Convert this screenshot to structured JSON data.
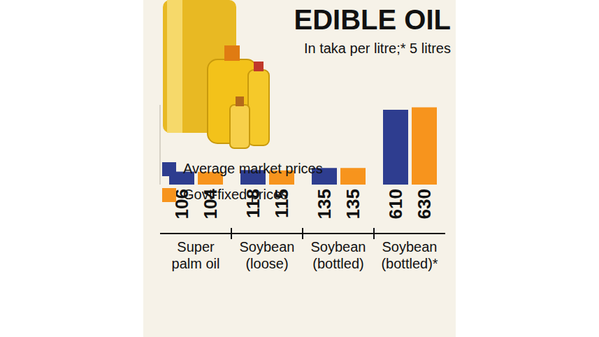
{
  "chart_data": {
    "type": "bar",
    "title": "EDIBLE OIL",
    "subtitle": "In taka per litre;* 5 litres",
    "categories": [
      "Super palm oil",
      "Soybean (loose)",
      "Soybean (bottled)",
      "Soybean (bottled)*"
    ],
    "series": [
      {
        "name": "Average market  prices",
        "color": "#2e3d8f",
        "values": [
          106,
          118,
          135,
          610
        ]
      },
      {
        "name": "Govt-fixed prices",
        "color": "#f7941d",
        "values": [
          104,
          115,
          135,
          630
        ]
      }
    ],
    "ylim": [
      0,
      650
    ],
    "data_labels": true,
    "tick_labels": "x",
    "legend": "left",
    "grid": false
  }
}
